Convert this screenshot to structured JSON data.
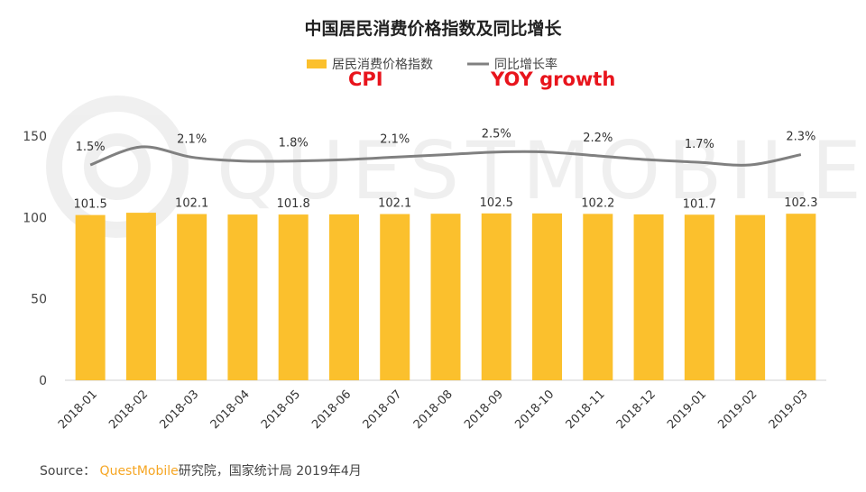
{
  "colors": {
    "bar": "#fbc02d",
    "line": "#808080",
    "annotation": "#e8141c",
    "brand": "#f6a623"
  },
  "legend": {
    "bar_label": "居民消费价格指数",
    "line_label": "同比增长率"
  },
  "annotations": {
    "cpi": "CPI",
    "yoy": "YOY growth"
  },
  "watermark": "QUESTMOBILE",
  "source": {
    "prefix": "Source：",
    "brand": "QuestMobile",
    "suffix": "研究院，国家统计局 2019年4月"
  },
  "chart_data": {
    "type": "bar",
    "title": "中国居民消费价格指数及同比增长",
    "categories": [
      "2018-01",
      "2018-02",
      "2018-03",
      "2018-04",
      "2018-05",
      "2018-06",
      "2018-07",
      "2018-08",
      "2018-09",
      "2018-10",
      "2018-11",
      "2018-12",
      "2019-01",
      "2019-02",
      "2019-03"
    ],
    "series": [
      {
        "name": "居民消费价格指数",
        "type": "bar",
        "values": [
          101.5,
          102.9,
          102.1,
          101.8,
          101.8,
          101.9,
          102.1,
          102.3,
          102.5,
          102.5,
          102.2,
          101.9,
          101.7,
          101.5,
          102.3
        ],
        "labels": [
          "101.5",
          "",
          "102.1",
          "",
          "101.8",
          "",
          "102.1",
          "",
          "102.5",
          "",
          "102.2",
          "",
          "101.7",
          "",
          "102.3"
        ]
      },
      {
        "name": "同比增长率",
        "type": "line",
        "values": [
          1.5,
          2.9,
          2.1,
          1.8,
          1.8,
          1.9,
          2.1,
          2.3,
          2.5,
          2.5,
          2.2,
          1.9,
          1.7,
          1.5,
          2.3
        ],
        "labels": [
          "1.5%",
          "",
          "2.1%",
          "",
          "1.8%",
          "",
          "2.1%",
          "",
          "2.5%",
          "",
          "2.2%",
          "",
          "1.7%",
          "",
          "2.3%"
        ]
      }
    ],
    "yticks": [
      0,
      50,
      100,
      150
    ],
    "ylim": [
      0,
      150
    ],
    "grid": false,
    "legend_position": "top-center"
  }
}
